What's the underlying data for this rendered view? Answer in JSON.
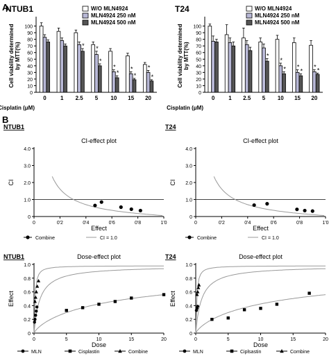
{
  "figure": {
    "section_a": "A",
    "section_b": "B"
  },
  "chart_data": [
    {
      "type": "bar",
      "title": "NTUB1",
      "ylabel": "Cell viability determined by MTT(%)",
      "xlabel": "Cisplatin (μM)",
      "categories": [
        "0",
        "1",
        "2.5",
        "5",
        "10",
        "15",
        "20"
      ],
      "ylim": [
        0,
        110
      ],
      "yticks": [
        0,
        10,
        20,
        30,
        40,
        50,
        60,
        70,
        80,
        90,
        100
      ],
      "series": [
        {
          "name": "W/O MLN4924",
          "color": "#ffffff",
          "values": [
            100,
            92,
            90,
            72,
            62,
            55,
            42
          ],
          "err": [
            5,
            5,
            4,
            4,
            4,
            4,
            3
          ]
        },
        {
          "name": "MLN4924 250 nM",
          "color": "#b8b8d6",
          "values": [
            83,
            78,
            72,
            57,
            31,
            28,
            30
          ],
          "err": [
            4,
            4,
            4,
            5,
            3,
            3,
            3
          ]
        },
        {
          "name": "MLN4924 500 nM",
          "color": "#555555",
          "values": [
            76,
            70,
            62,
            40,
            22,
            19,
            17
          ],
          "err": [
            3,
            3,
            4,
            3,
            3,
            2,
            2
          ]
        }
      ],
      "stars": [
        [
          false,
          false,
          false
        ],
        [
          false,
          false,
          false
        ],
        [
          false,
          false,
          true
        ],
        [
          false,
          true,
          true
        ],
        [
          false,
          true,
          true
        ],
        [
          false,
          true,
          true
        ],
        [
          false,
          true,
          true
        ]
      ]
    },
    {
      "type": "bar",
      "title": "T24",
      "ylabel": "Cell viability determined by MTT(%)",
      "xlabel": "Cisplatin (μM)",
      "categories": [
        "0",
        "1",
        "2.5",
        "5",
        "10",
        "15",
        "20"
      ],
      "ylim": [
        0,
        110
      ],
      "yticks": [
        0,
        10,
        20,
        30,
        40,
        50,
        60,
        70,
        80,
        90,
        100
      ],
      "series": [
        {
          "name": "W/O MLN4924",
          "color": "#ffffff",
          "values": [
            100,
            87,
            82,
            76,
            80,
            75,
            71
          ],
          "err": [
            3,
            15,
            15,
            6,
            6,
            7,
            7
          ]
        },
        {
          "name": "MLN4924 250 nM",
          "color": "#b8b8d6",
          "values": [
            77,
            75,
            72,
            67,
            40,
            30,
            31
          ],
          "err": [
            8,
            7,
            6,
            6,
            4,
            4,
            3
          ]
        },
        {
          "name": "MLN4924 500 nM",
          "color": "#555555",
          "values": [
            76,
            70,
            63,
            47,
            28,
            25,
            27
          ],
          "err": [
            4,
            6,
            5,
            4,
            3,
            3,
            2
          ]
        }
      ],
      "stars": [
        [
          false,
          false,
          false
        ],
        [
          false,
          false,
          false
        ],
        [
          false,
          false,
          false
        ],
        [
          false,
          false,
          true
        ],
        [
          false,
          true,
          true
        ],
        [
          false,
          true,
          true
        ],
        [
          false,
          true,
          true
        ]
      ]
    },
    {
      "type": "scatter",
      "panel": "NTUB1",
      "title": "CI-effect plot",
      "xlabel": "Effect",
      "ylabel": "CI",
      "xlim": [
        0,
        1
      ],
      "ylim": [
        0,
        4
      ],
      "xticks": [
        "0",
        "0'2",
        "0'4",
        "0'6",
        "0'8",
        "1'0"
      ],
      "yticks": [
        "0",
        "1.0",
        "2.0",
        "3.0",
        "4.0"
      ],
      "points": [
        [
          0.47,
          0.65
        ],
        [
          0.52,
          0.85
        ],
        [
          0.67,
          0.55
        ],
        [
          0.75,
          0.43
        ],
        [
          0.82,
          0.35
        ]
      ],
      "legend": [
        "Combine",
        "CI = 1.0"
      ]
    },
    {
      "type": "scatter",
      "panel": "T24",
      "title": "CI-effect plot",
      "xlabel": "Effect",
      "ylabel": "CI",
      "xlim": [
        0,
        1
      ],
      "ylim": [
        0,
        4
      ],
      "xticks": [
        "0",
        "0'2",
        "0'4",
        "0'6",
        "0'8",
        "1'0"
      ],
      "yticks": [
        "0",
        "1.0",
        "2.0",
        "3.0",
        "4.0"
      ],
      "points": [
        [
          0.45,
          0.67
        ],
        [
          0.55,
          0.75
        ],
        [
          0.78,
          0.42
        ],
        [
          0.84,
          0.35
        ],
        [
          0.9,
          0.32
        ]
      ],
      "legend": [
        "Combine",
        "CI = 1.0"
      ]
    },
    {
      "type": "scatter",
      "panel": "NTUB1",
      "title": "Dose-effect plot",
      "xlabel": "Dose",
      "ylabel": "Effect",
      "xlim": [
        0,
        20
      ],
      "ylim": [
        0,
        1
      ],
      "xticks": [
        "0",
        "5",
        "10",
        "15",
        "20"
      ],
      "yticks": [
        "0",
        "0.2",
        "0.4",
        "0.6",
        "0.8",
        "1.0"
      ],
      "series": [
        {
          "name": "MLN",
          "marker": "circle",
          "points": [
            [
              0.08,
              0.16
            ],
            [
              0.15,
              0.2
            ],
            [
              0.25,
              0.26
            ],
            [
              0.35,
              0.32
            ],
            [
              0.45,
              0.38
            ]
          ]
        },
        {
          "name": "Cisplastin",
          "marker": "square",
          "points": [
            [
              5,
              0.33
            ],
            [
              7.5,
              0.37
            ],
            [
              10,
              0.42
            ],
            [
              12.5,
              0.46
            ],
            [
              15,
              0.51
            ],
            [
              20,
              0.56
            ]
          ]
        },
        {
          "name": "Combine",
          "marker": "triangle",
          "points": [
            [
              0.15,
              0.46
            ],
            [
              0.25,
              0.52
            ],
            [
              0.35,
              0.6
            ],
            [
              0.5,
              0.68
            ],
            [
              0.7,
              0.76
            ]
          ]
        }
      ]
    },
    {
      "type": "scatter",
      "panel": "T24",
      "title": "Dose-effect plot",
      "xlabel": "Dose",
      "ylabel": "Effect",
      "xlim": [
        0,
        20
      ],
      "ylim": [
        0,
        1
      ],
      "xticks": [
        "0",
        "5",
        "10",
        "15",
        "20"
      ],
      "yticks": [
        "0",
        "0.2",
        "0.4",
        "0.6",
        "0.8",
        "1.0"
      ],
      "series": [
        {
          "name": "MLN",
          "marker": "circle",
          "points": [
            [
              0.1,
              0.33
            ],
            [
              0.2,
              0.36
            ],
            [
              0.3,
              0.39
            ]
          ]
        },
        {
          "name": "Ciplsastin",
          "marker": "square",
          "points": [
            [
              2.5,
              0.2
            ],
            [
              5,
              0.22
            ],
            [
              7.5,
              0.34
            ],
            [
              10,
              0.36
            ],
            [
              12.5,
              0.42
            ],
            [
              17.5,
              0.58
            ]
          ]
        },
        {
          "name": "Combine",
          "marker": "triangle",
          "points": [
            [
              0.2,
              0.56
            ],
            [
              0.3,
              0.6
            ],
            [
              0.4,
              0.66
            ],
            [
              0.5,
              0.7
            ]
          ]
        }
      ]
    }
  ]
}
